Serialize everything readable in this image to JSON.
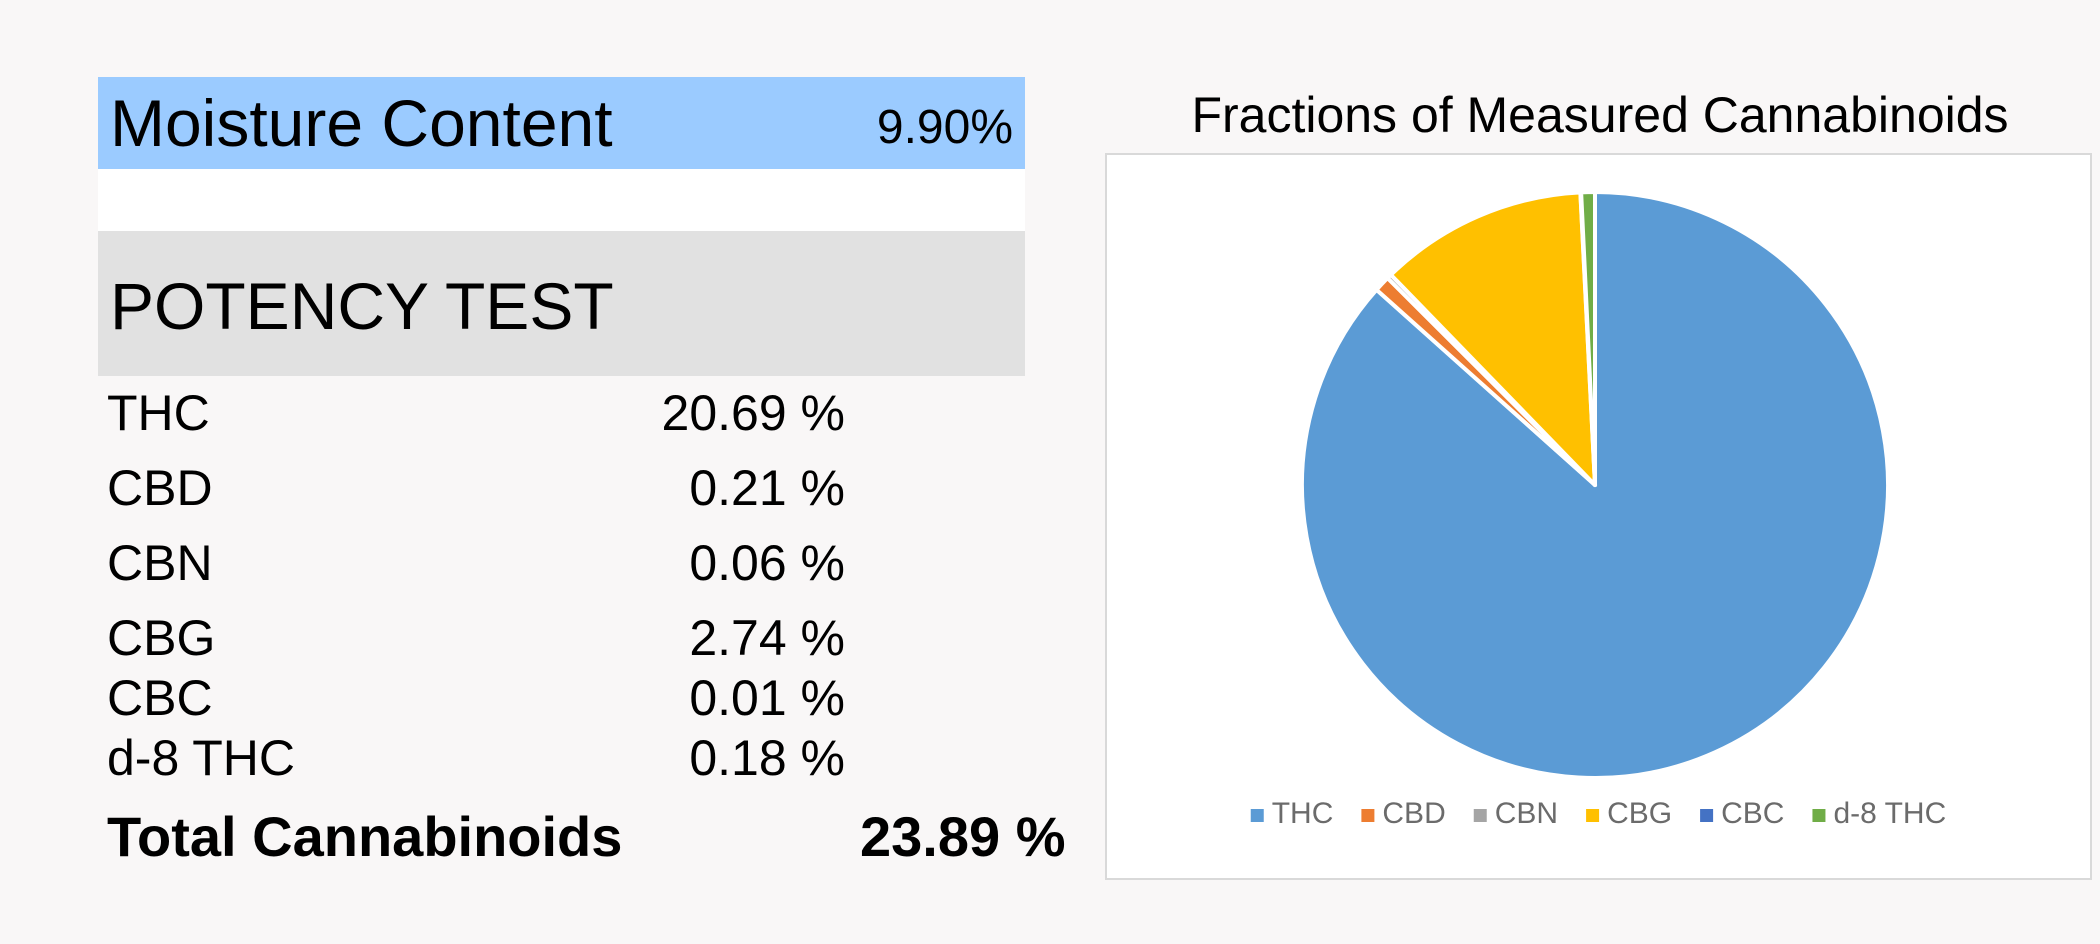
{
  "moisture": {
    "label": "Moisture Content",
    "value": "9.90%"
  },
  "potency": {
    "label": "POTENCY TEST"
  },
  "rows": [
    {
      "name": "THC",
      "value": "20.69 %"
    },
    {
      "name": "CBD",
      "value": "0.21 %"
    },
    {
      "name": "CBN",
      "value": "0.06 %"
    },
    {
      "name": "CBG",
      "value": "2.74 %"
    },
    {
      "name": "CBC",
      "value": "0.01 %"
    },
    {
      "name": "d-8 THC",
      "value": "0.18 %"
    }
  ],
  "total": {
    "label": "Total Cannabinoids",
    "value": "23.89 %"
  },
  "chart_data": {
    "type": "pie",
    "title": "Fractions of Measured Cannabinoids",
    "categories": [
      "THC",
      "CBD",
      "CBN",
      "CBG",
      "CBC",
      "d-8 THC"
    ],
    "values": [
      20.69,
      0.21,
      0.06,
      2.74,
      0.01,
      0.18
    ],
    "colors": [
      "#5b9bd5",
      "#ed7d31",
      "#a5a5a5",
      "#ffc000",
      "#4472c4",
      "#70ad47"
    ],
    "legend": "bottom"
  }
}
